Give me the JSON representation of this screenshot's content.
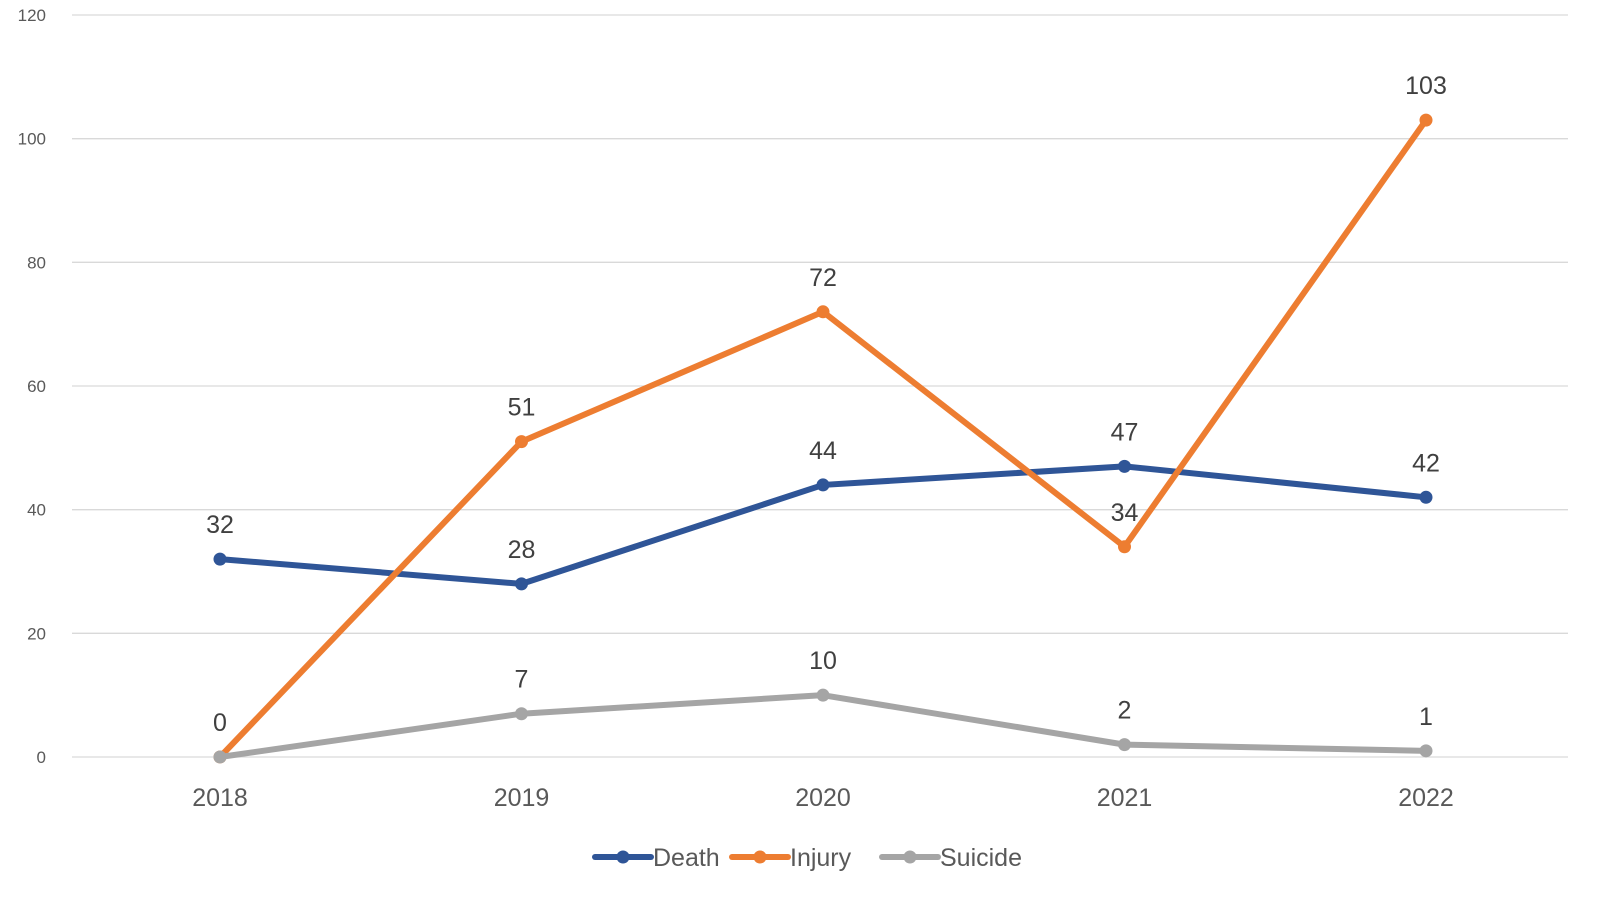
{
  "chart_data": {
    "type": "line",
    "title": "",
    "xlabel": "",
    "ylabel": "",
    "categories": [
      "2018",
      "2019",
      "2020",
      "2021",
      "2022"
    ],
    "ylim": [
      0,
      120
    ],
    "yticks": [
      0,
      20,
      40,
      60,
      80,
      100,
      120
    ],
    "grid": true,
    "legend_position": "bottom",
    "data_labels": true,
    "series": [
      {
        "name": "Death",
        "color": "#2f5597",
        "values": [
          32,
          28,
          44,
          47,
          42
        ]
      },
      {
        "name": "Injury",
        "color": "#ed7d31",
        "values": [
          0,
          51,
          72,
          34,
          103
        ]
      },
      {
        "name": "Suicide",
        "color": "#a5a5a5",
        "values": [
          0,
          7,
          10,
          2,
          1
        ]
      }
    ]
  }
}
